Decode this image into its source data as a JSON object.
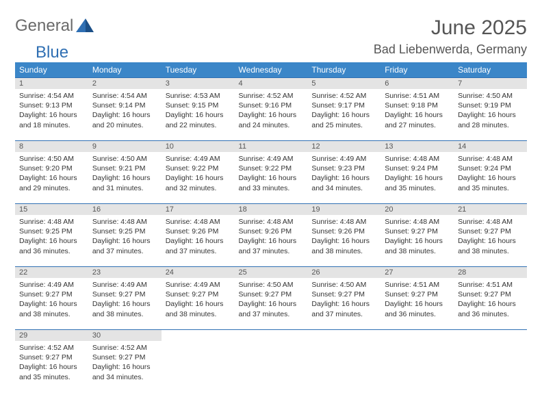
{
  "logo": {
    "word1": "General",
    "word2": "Blue",
    "word1_color": "#6a6a6a",
    "word2_color": "#2f6fb3"
  },
  "header": {
    "month_title": "June 2025",
    "location": "Bad Liebenwerda, Germany"
  },
  "style": {
    "header_bg": "#3b86c8",
    "header_fg": "#ffffff",
    "daynum_bg": "#e4e4e4",
    "rule_color": "#2f6fb3",
    "body_color": "#333333",
    "title_color": "#555555"
  },
  "calendar": {
    "columns": [
      "Sunday",
      "Monday",
      "Tuesday",
      "Wednesday",
      "Thursday",
      "Friday",
      "Saturday"
    ],
    "start_col": 0,
    "days": [
      {
        "n": 1,
        "sunrise": "4:54 AM",
        "sunset": "9:13 PM",
        "daylight": "16 hours and 18 minutes."
      },
      {
        "n": 2,
        "sunrise": "4:54 AM",
        "sunset": "9:14 PM",
        "daylight": "16 hours and 20 minutes."
      },
      {
        "n": 3,
        "sunrise": "4:53 AM",
        "sunset": "9:15 PM",
        "daylight": "16 hours and 22 minutes."
      },
      {
        "n": 4,
        "sunrise": "4:52 AM",
        "sunset": "9:16 PM",
        "daylight": "16 hours and 24 minutes."
      },
      {
        "n": 5,
        "sunrise": "4:52 AM",
        "sunset": "9:17 PM",
        "daylight": "16 hours and 25 minutes."
      },
      {
        "n": 6,
        "sunrise": "4:51 AM",
        "sunset": "9:18 PM",
        "daylight": "16 hours and 27 minutes."
      },
      {
        "n": 7,
        "sunrise": "4:50 AM",
        "sunset": "9:19 PM",
        "daylight": "16 hours and 28 minutes."
      },
      {
        "n": 8,
        "sunrise": "4:50 AM",
        "sunset": "9:20 PM",
        "daylight": "16 hours and 29 minutes."
      },
      {
        "n": 9,
        "sunrise": "4:50 AM",
        "sunset": "9:21 PM",
        "daylight": "16 hours and 31 minutes."
      },
      {
        "n": 10,
        "sunrise": "4:49 AM",
        "sunset": "9:22 PM",
        "daylight": "16 hours and 32 minutes."
      },
      {
        "n": 11,
        "sunrise": "4:49 AM",
        "sunset": "9:22 PM",
        "daylight": "16 hours and 33 minutes."
      },
      {
        "n": 12,
        "sunrise": "4:49 AM",
        "sunset": "9:23 PM",
        "daylight": "16 hours and 34 minutes."
      },
      {
        "n": 13,
        "sunrise": "4:48 AM",
        "sunset": "9:24 PM",
        "daylight": "16 hours and 35 minutes."
      },
      {
        "n": 14,
        "sunrise": "4:48 AM",
        "sunset": "9:24 PM",
        "daylight": "16 hours and 35 minutes."
      },
      {
        "n": 15,
        "sunrise": "4:48 AM",
        "sunset": "9:25 PM",
        "daylight": "16 hours and 36 minutes."
      },
      {
        "n": 16,
        "sunrise": "4:48 AM",
        "sunset": "9:25 PM",
        "daylight": "16 hours and 37 minutes."
      },
      {
        "n": 17,
        "sunrise": "4:48 AM",
        "sunset": "9:26 PM",
        "daylight": "16 hours and 37 minutes."
      },
      {
        "n": 18,
        "sunrise": "4:48 AM",
        "sunset": "9:26 PM",
        "daylight": "16 hours and 37 minutes."
      },
      {
        "n": 19,
        "sunrise": "4:48 AM",
        "sunset": "9:26 PM",
        "daylight": "16 hours and 38 minutes."
      },
      {
        "n": 20,
        "sunrise": "4:48 AM",
        "sunset": "9:27 PM",
        "daylight": "16 hours and 38 minutes."
      },
      {
        "n": 21,
        "sunrise": "4:48 AM",
        "sunset": "9:27 PM",
        "daylight": "16 hours and 38 minutes."
      },
      {
        "n": 22,
        "sunrise": "4:49 AM",
        "sunset": "9:27 PM",
        "daylight": "16 hours and 38 minutes."
      },
      {
        "n": 23,
        "sunrise": "4:49 AM",
        "sunset": "9:27 PM",
        "daylight": "16 hours and 38 minutes."
      },
      {
        "n": 24,
        "sunrise": "4:49 AM",
        "sunset": "9:27 PM",
        "daylight": "16 hours and 38 minutes."
      },
      {
        "n": 25,
        "sunrise": "4:50 AM",
        "sunset": "9:27 PM",
        "daylight": "16 hours and 37 minutes."
      },
      {
        "n": 26,
        "sunrise": "4:50 AM",
        "sunset": "9:27 PM",
        "daylight": "16 hours and 37 minutes."
      },
      {
        "n": 27,
        "sunrise": "4:51 AM",
        "sunset": "9:27 PM",
        "daylight": "16 hours and 36 minutes."
      },
      {
        "n": 28,
        "sunrise": "4:51 AM",
        "sunset": "9:27 PM",
        "daylight": "16 hours and 36 minutes."
      },
      {
        "n": 29,
        "sunrise": "4:52 AM",
        "sunset": "9:27 PM",
        "daylight": "16 hours and 35 minutes."
      },
      {
        "n": 30,
        "sunrise": "4:52 AM",
        "sunset": "9:27 PM",
        "daylight": "16 hours and 34 minutes."
      }
    ],
    "labels": {
      "sunrise": "Sunrise:",
      "sunset": "Sunset:",
      "daylight": "Daylight:"
    }
  }
}
